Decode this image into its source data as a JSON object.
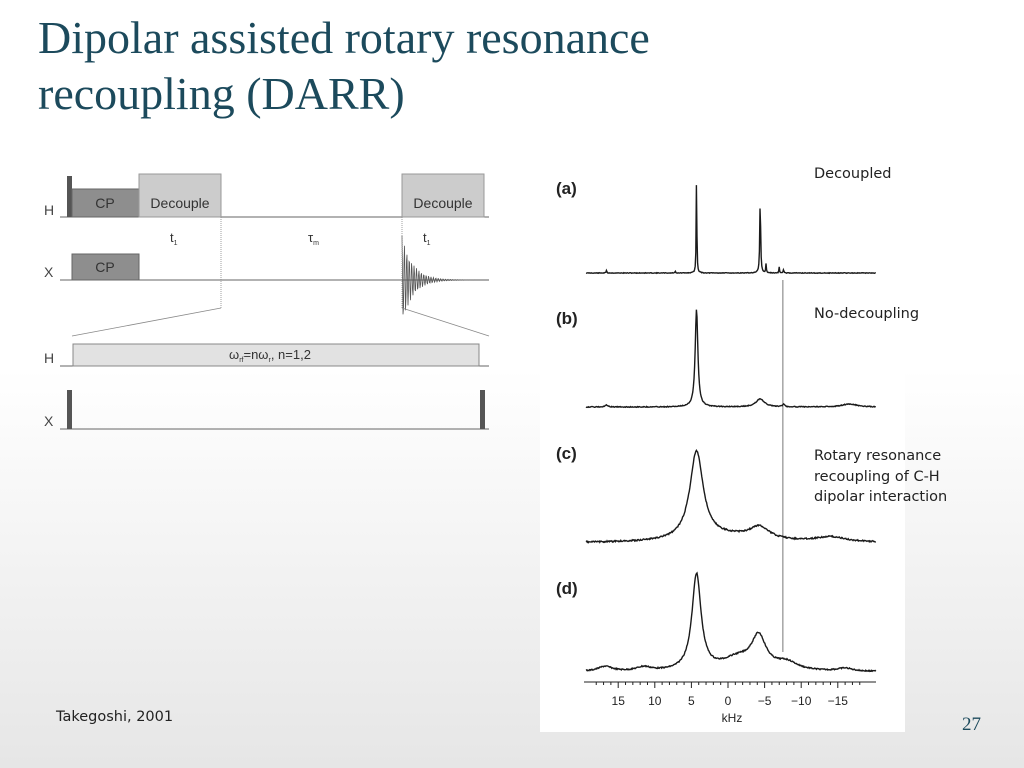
{
  "slide": {
    "title_lines": [
      "Dipolar assisted rotary resonance",
      "recoupling (DARR)"
    ],
    "citation": "Takegoshi, 2001",
    "page_number": "27"
  },
  "pulse_sequence": {
    "h_channel": "H",
    "x_channel": "X",
    "cp": "CP",
    "decouple": "Decouple",
    "t1": "t",
    "t1_sub": "1",
    "tau": "τ",
    "tau_sub": "m",
    "rf_condition": {
      "omega": "ω",
      "rf_sub": "rf",
      "mid": "=nω",
      "r_sub": "r",
      "tail": ", n=1,2"
    }
  },
  "spectra": {
    "panels": [
      {
        "label": "(a)",
        "annotation_lines": [
          "Decoupled"
        ]
      },
      {
        "label": "(b)",
        "annotation_lines": [
          "No-decoupling"
        ]
      },
      {
        "label": "(c)",
        "annotation_lines": [
          "Rotary resonance",
          "recoupling of C-H",
          "dipolar interaction"
        ]
      },
      {
        "label": "(d)",
        "annotation_lines": []
      }
    ],
    "x_axis": {
      "unit": "kHz",
      "range": [
        20,
        -20
      ],
      "ticks": [
        "15",
        "10",
        "5",
        "0",
        "−5",
        "−10",
        "−15"
      ],
      "tick_values": [
        15,
        10,
        5,
        0,
        -5,
        -10,
        -15
      ]
    },
    "reference_line_khz": -7.5
  }
}
